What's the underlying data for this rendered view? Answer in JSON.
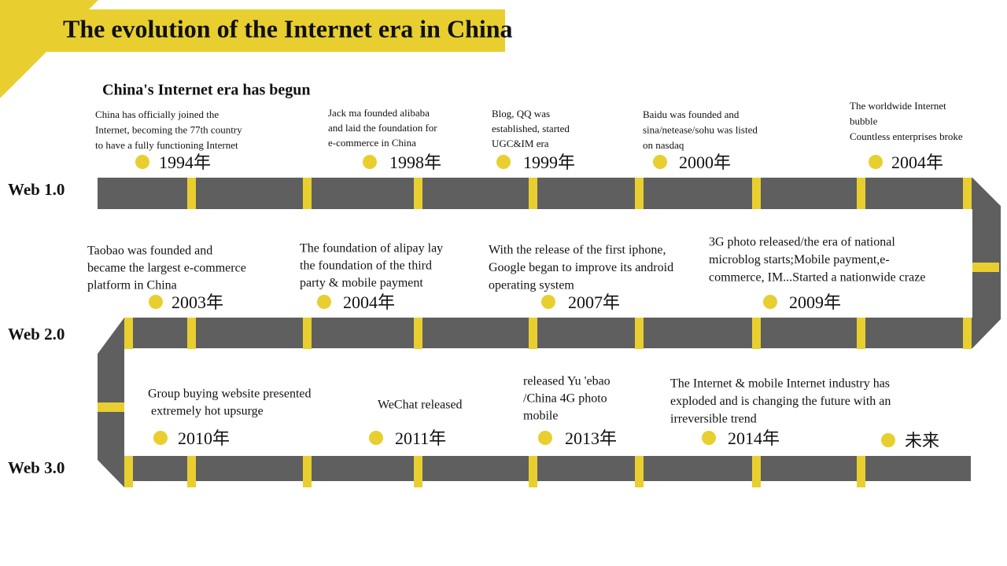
{
  "header": {
    "title": "The evolution of the Internet era in China",
    "subtitle": "China's Internet era has begun"
  },
  "rows": [
    {
      "label": "Web 1.0",
      "events": [
        {
          "year": "1994年",
          "lines": [
            "China has officially joined the",
            "Internet, becoming the 77th country",
            "to have a fully functioning Internet"
          ]
        },
        {
          "year": "1998年",
          "lines": [
            "Jack ma founded alibaba",
            "and laid the foundation for",
            "e-commerce in China"
          ]
        },
        {
          "year": "1999年",
          "lines": [
            "Blog, QQ was",
            "established, started",
            "UGC&IM era"
          ]
        },
        {
          "year": "2000年",
          "lines": [
            "Baidu was founded and",
            "sina/netease/sohu was listed",
            "on nasdaq"
          ]
        },
        {
          "year": "2004年",
          "lines": [
            "The worldwide Internet",
            "bubble",
            "Countless enterprises broke"
          ]
        }
      ]
    },
    {
      "label": "Web 2.0",
      "events": [
        {
          "year": "2003年",
          "lines": [
            "Taobao was founded and",
            "became the largest e-commerce",
            "platform in China"
          ]
        },
        {
          "year": "2004年",
          "lines": [
            "The foundation of alipay lay",
            "the foundation of the third",
            "party & mobile payment"
          ]
        },
        {
          "year": "2007年",
          "lines": [
            "With the release of the first iphone,",
            "Google began to improve its android",
            "operating system"
          ]
        },
        {
          "year": "2009年",
          "lines": [
            "3G photo released/the era of national",
            "microblog starts;Mobile payment,e-",
            "commerce, IM...Started a nationwide craze"
          ]
        }
      ]
    },
    {
      "label": "Web 3.0",
      "events": [
        {
          "year": "2010年",
          "lines": [
            "Group buying website presented",
            " extremely hot upsurge"
          ]
        },
        {
          "year": "2011年",
          "lines": [
            "WeChat released"
          ]
        },
        {
          "year": "2013年",
          "lines": [
            "released Yu 'ebao",
            "/China 4G photo",
            "mobile"
          ]
        },
        {
          "year": "2014年",
          "lines": [
            "The Internet & mobile Internet industry has",
            "exploded and is changing the future with an",
            "irreversible trend"
          ]
        },
        {
          "year": "未来",
          "lines": []
        }
      ]
    }
  ]
}
